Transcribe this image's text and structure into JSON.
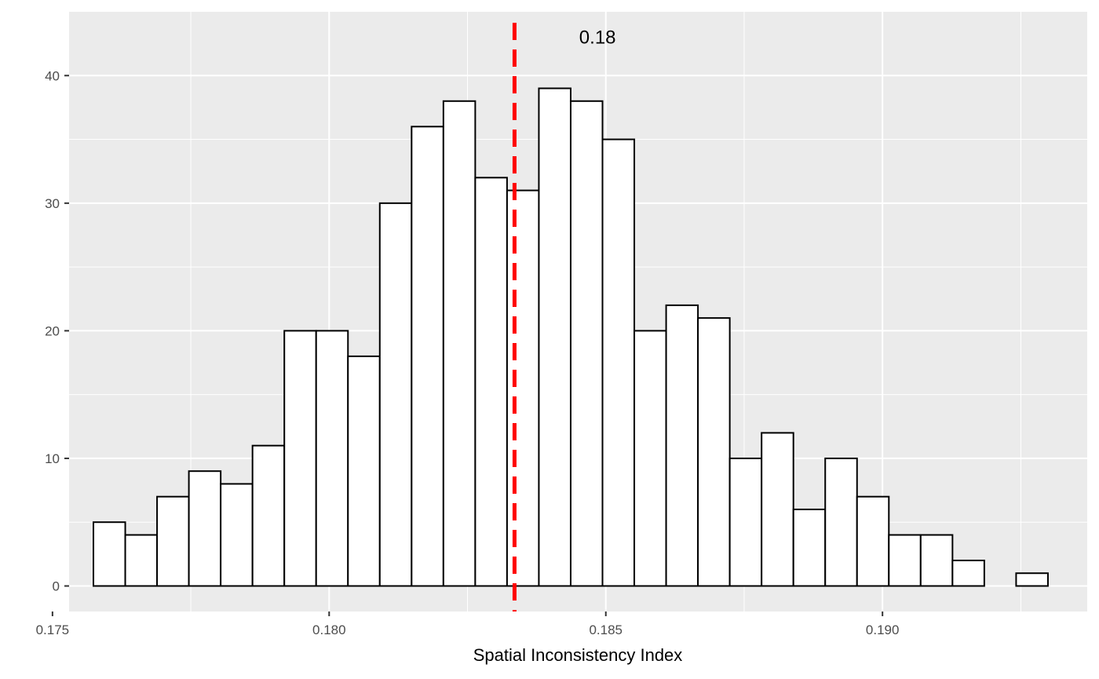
{
  "chart_data": {
    "type": "bar",
    "subtype": "histogram",
    "xlabel": "Spatial Inconsistency Index",
    "ylabel": "",
    "xlim": [
      0.1753,
      0.1937
    ],
    "ylim": [
      -2,
      45
    ],
    "x_ticks": [
      0.175,
      0.18,
      0.185,
      0.19
    ],
    "x_tick_labels": [
      "0.175",
      "0.180",
      "0.185",
      "0.190"
    ],
    "y_ticks": [
      0,
      10,
      20,
      30,
      40
    ],
    "y_tick_labels": [
      "0",
      "10",
      "20",
      "30",
      "40"
    ],
    "grid": true,
    "bin_start": 0.17574,
    "bin_width": 0.000575,
    "counts": [
      5,
      4,
      7,
      9,
      8,
      11,
      20,
      20,
      18,
      30,
      36,
      38,
      32,
      31,
      39,
      38,
      35,
      20,
      22,
      21,
      10,
      12,
      6,
      10,
      7,
      4,
      4,
      2,
      0,
      1
    ],
    "bar_fill": "#ffffff",
    "bar_stroke": "#000000",
    "panel_background": "#ebebeb",
    "reference_line": {
      "x": 0.18335,
      "color": "#ff0000",
      "style": "dashed"
    },
    "annotation": {
      "text": "0.18",
      "x": 0.18485,
      "y": 43
    }
  }
}
